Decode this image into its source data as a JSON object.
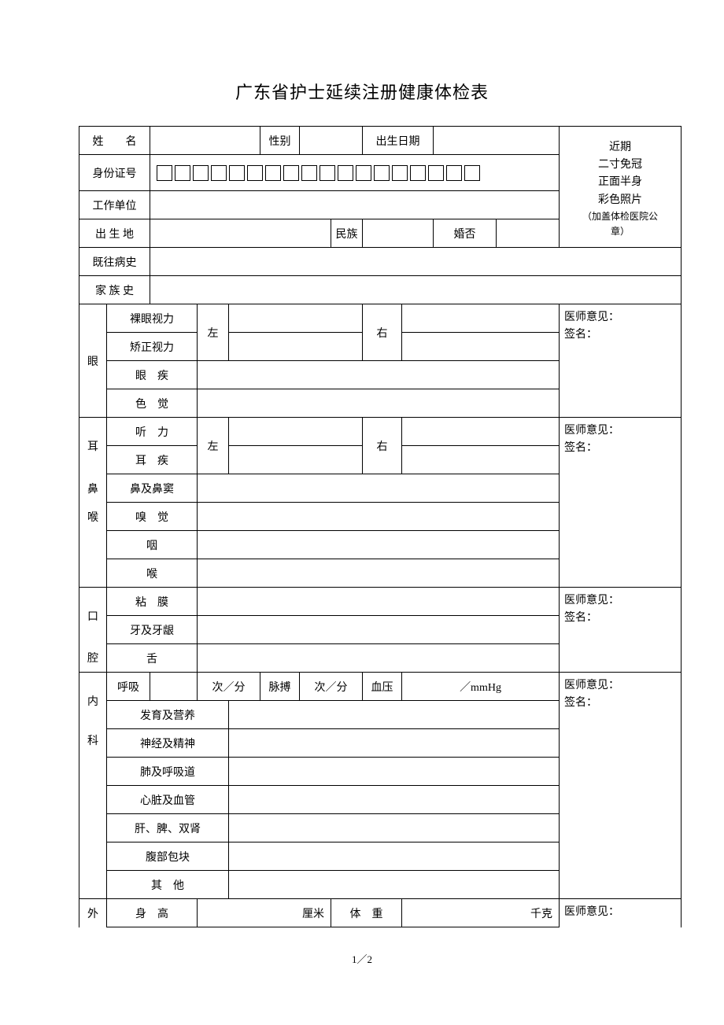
{
  "title": "广东省护士延续注册健康体检表",
  "labels": {
    "name": "姓　　名",
    "gender": "性别",
    "dob": "出生日期",
    "idnum": "身份证号",
    "workunit": "工作单位",
    "birthplace": "出 生 地",
    "ethnic": "民族",
    "married": "婚否",
    "history": "既往病史",
    "family": "家 族 史",
    "eye": "眼",
    "naked_vision": "裸眼视力",
    "corrected_vision": "矫正视力",
    "eye_disease": "眼　疾",
    "color_sense": "色　觉",
    "left": "左",
    "right": "右",
    "ent": "耳鼻喉",
    "ear": "耳",
    "nose": "鼻",
    "throat_sec": "喉",
    "hearing": "听　力",
    "ear_disease": "耳　疾",
    "nose_sinus": "鼻及鼻窦",
    "smell": "嗅　觉",
    "pharynx": "咽",
    "larynx": "喉",
    "oral": "口腔",
    "oral1": "口",
    "oral2": "腔",
    "mucosa": "粘　膜",
    "teeth_gum": "牙及牙龈",
    "tongue": "舌",
    "internal": "内科",
    "internal1": "内",
    "internal2": "科",
    "respiration": "呼吸",
    "per_min": "次／分",
    "pulse": "脉搏",
    "bp": "血压",
    "mmhg": "／mmHg",
    "dev_nutrition": "发育及营养",
    "nerve_mental": "神经及精神",
    "lung_resp": "肺及呼吸道",
    "heart_vessel": "心脏及血管",
    "liver_spleen_kidney": "肝、脾、双肾",
    "abdomen_mass": "腹部包块",
    "others": "其　他",
    "surgery": "外",
    "height": "身　高",
    "cm": "厘米",
    "weight": "体　重",
    "kg": "千克",
    "doctor_opinion": "医师意见：",
    "signature": "签名："
  },
  "photo_lines": [
    "近期",
    "二寸免冠",
    "正面半身",
    "彩色照片",
    "（加盖体检医院公",
    "章）"
  ],
  "id_box_count": 18,
  "page_num": "1／2",
  "colors": {
    "bg": "#ffffff",
    "text": "#000000",
    "border": "#000000"
  }
}
